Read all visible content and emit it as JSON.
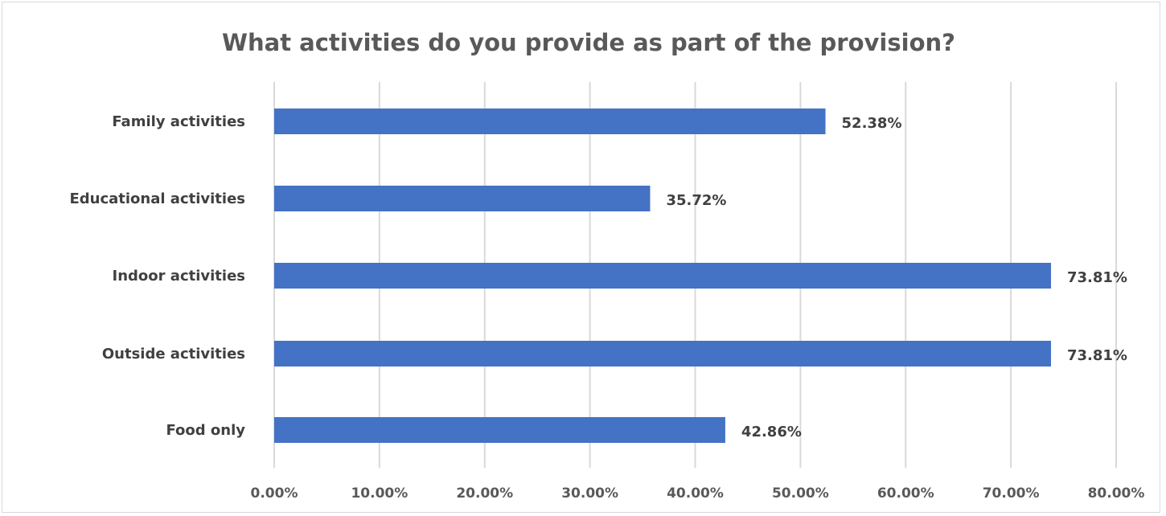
{
  "chart_data": {
    "type": "bar",
    "orientation": "horizontal",
    "title": "What activities do you provide as part of the provision?",
    "categories": [
      "Family activities",
      "Educational activities",
      "Indoor activities",
      "Outside activities",
      "Food only"
    ],
    "values": [
      52.38,
      35.72,
      73.81,
      73.81,
      42.86
    ],
    "data_labels": [
      "52.38%",
      "35.72%",
      "73.81%",
      "73.81%",
      "42.86%"
    ],
    "xlim": [
      0,
      80
    ],
    "x_ticks": [
      0,
      10,
      20,
      30,
      40,
      50,
      60,
      70,
      80
    ],
    "x_tick_labels": [
      "0.00%",
      "10.00%",
      "20.00%",
      "30.00%",
      "40.00%",
      "50.00%",
      "60.00%",
      "70.00%",
      "80.00%"
    ],
    "xlabel": "",
    "ylabel": "",
    "grid": "vertical",
    "legend": "none",
    "bar_color": "#4472C4",
    "grid_color": "#d9d9d9"
  }
}
